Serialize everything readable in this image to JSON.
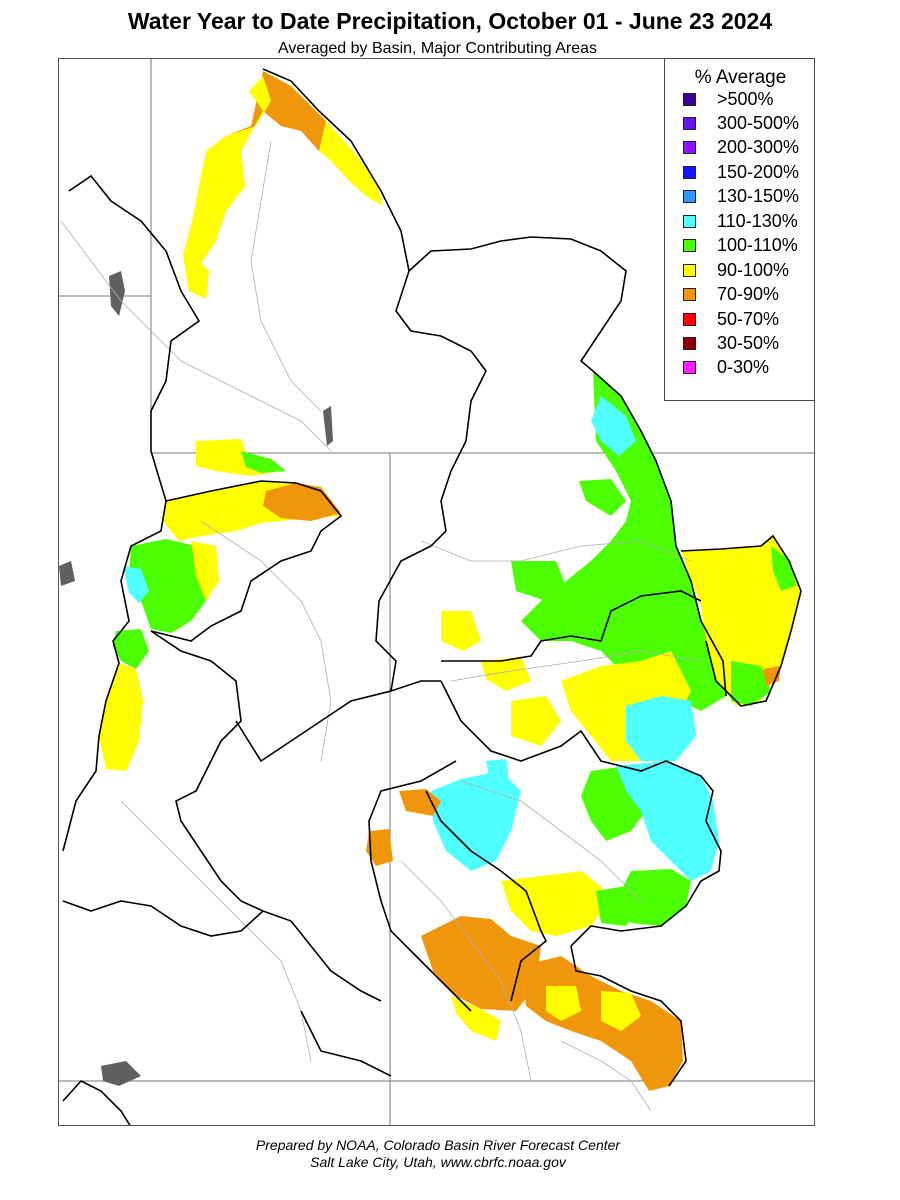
{
  "title": "Water Year to Date Precipitation, October 01  - June 23 2024",
  "subtitle": "Averaged by Basin, Major Contributing Areas",
  "legend": {
    "title": "% Average",
    "items": [
      {
        "label": ">500%",
        "color": "#3c0096"
      },
      {
        "label": "300-500%",
        "color": "#6414e6"
      },
      {
        "label": "200-300%",
        "color": "#8c14ff"
      },
      {
        "label": "150-200%",
        "color": "#1414ff"
      },
      {
        "label": "130-150%",
        "color": "#3296ff"
      },
      {
        "label": "110-130%",
        "color": "#50ffff"
      },
      {
        "label": "100-110%",
        "color": "#4bff00"
      },
      {
        "label": "90-100%",
        "color": "#ffff00"
      },
      {
        "label": "70-90%",
        "color": "#f0960a"
      },
      {
        "label": "50-70%",
        "color": "#ff0000"
      },
      {
        "label": "30-50%",
        "color": "#8c0000"
      },
      {
        "label": "0-30%",
        "color": "#ff1eff"
      }
    ]
  },
  "credits": {
    "line1": "Prepared by NOAA, Colorado Basin River Forecast Center",
    "line2": "Salt Lake City, Utah, www.cbrfc.noaa.gov"
  }
}
